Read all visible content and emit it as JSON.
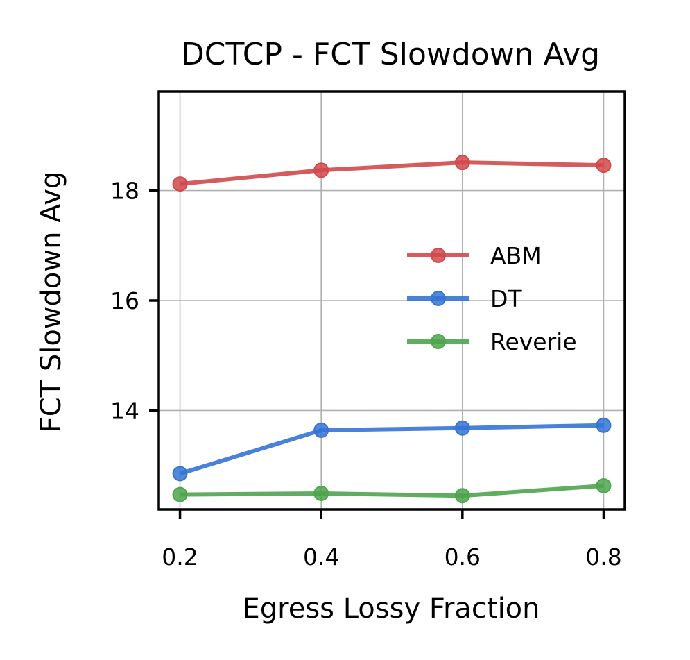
{
  "chart_data": {
    "type": "line",
    "title": "DCTCP - FCT Slowdown Avg",
    "xlabel": "Egress Lossy Fraction",
    "ylabel": "FCT Slowdown Avg",
    "x": [
      0.2,
      0.4,
      0.6,
      0.8
    ],
    "x_tick_labels": [
      "0.2",
      "0.4",
      "0.6",
      "0.8"
    ],
    "y_ticks": [
      14,
      16,
      18
    ],
    "y_tick_labels": [
      "14",
      "16",
      "18"
    ],
    "xlim": [
      0.17,
      0.83
    ],
    "ylim": [
      12.2,
      19.8
    ],
    "grid": true,
    "legend_position": "center-right",
    "series": [
      {
        "name": "ABM",
        "color": "#d1494b",
        "values": [
          18.12,
          18.37,
          18.51,
          18.46
        ]
      },
      {
        "name": "DT",
        "color": "#3574d4",
        "values": [
          12.85,
          13.64,
          13.68,
          13.73
        ]
      },
      {
        "name": "Reverie",
        "color": "#4ea54e",
        "values": [
          12.47,
          12.49,
          12.45,
          12.63
        ]
      }
    ]
  }
}
